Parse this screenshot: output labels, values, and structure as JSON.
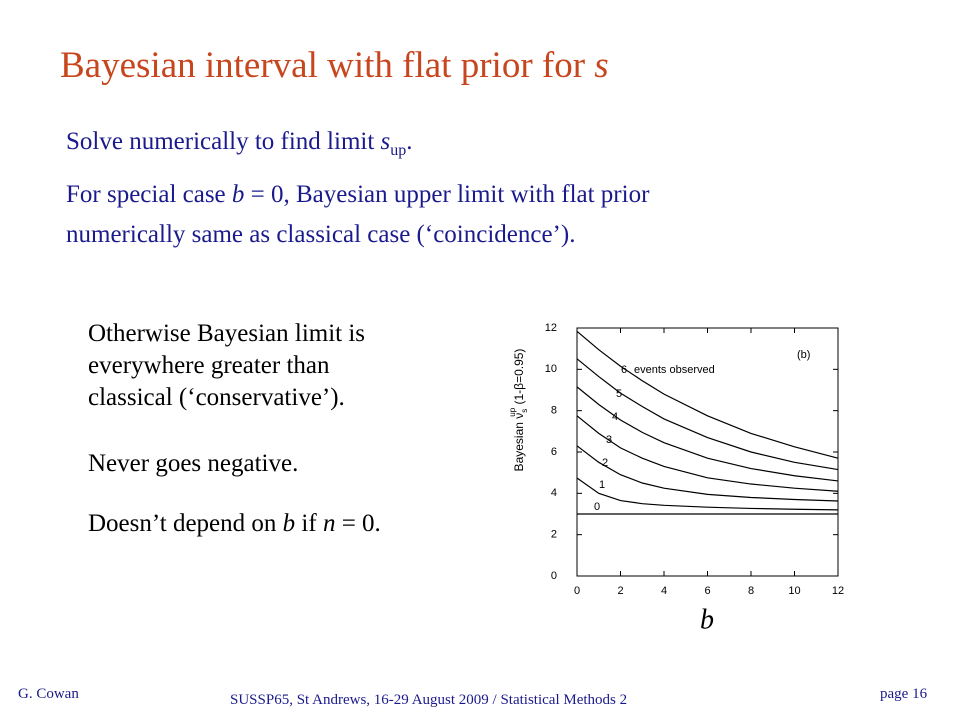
{
  "title": {
    "text": "Bayesian interval with flat prior for ",
    "var": "s"
  },
  "body": {
    "line1": [
      "Solve numerically to find limit ",
      "s",
      "up",
      "."
    ],
    "line2": [
      "For special case ",
      "b",
      " = 0, Bayesian upper limit with flat prior"
    ],
    "line3": "numerically same as classical case (‘coincidence’)."
  },
  "left": {
    "p1": [
      "Otherwise Bayesian limit is",
      "everywhere greater than",
      "classical (‘conservative’)."
    ],
    "p2": "Never goes negative.",
    "p3": [
      "Doesn’t depend on ",
      "b",
      " if ",
      "n",
      " = 0."
    ]
  },
  "footer": {
    "author": "G. Cowan",
    "event": "SUSSP65, St Andrews, 16-29 August 2009 / Statistical Methods 2",
    "page": "page 16"
  },
  "chart_data": {
    "type": "line",
    "x": [
      0,
      1,
      2,
      3,
      4,
      6,
      8,
      10,
      12
    ],
    "series": [
      {
        "name": "0",
        "color": "#000000",
        "values": [
          3.0,
          3.0,
          3.0,
          3.0,
          3.0,
          3.0,
          3.0,
          3.0,
          3.0
        ]
      },
      {
        "name": "1",
        "color": "#000000",
        "values": [
          4.74,
          4.0,
          3.65,
          3.5,
          3.42,
          3.33,
          3.27,
          3.23,
          3.2
        ]
      },
      {
        "name": "2",
        "color": "#000000",
        "values": [
          6.3,
          5.5,
          4.9,
          4.5,
          4.25,
          3.95,
          3.8,
          3.7,
          3.63
        ]
      },
      {
        "name": "3",
        "color": "#000000",
        "values": [
          7.75,
          6.9,
          6.2,
          5.7,
          5.3,
          4.75,
          4.45,
          4.25,
          4.1
        ]
      },
      {
        "name": "4",
        "color": "#000000",
        "values": [
          9.15,
          8.3,
          7.55,
          6.95,
          6.45,
          5.7,
          5.2,
          4.85,
          4.6
        ]
      },
      {
        "name": "5",
        "color": "#000000",
        "values": [
          10.51,
          9.65,
          8.85,
          8.2,
          7.6,
          6.7,
          6.0,
          5.5,
          5.15
        ]
      },
      {
        "name": "6",
        "color": "#000000",
        "values": [
          11.84,
          10.95,
          10.15,
          9.45,
          8.8,
          7.75,
          6.9,
          6.25,
          5.7
        ]
      }
    ],
    "xlim": [
      0,
      12
    ],
    "ylim": [
      0,
      12
    ],
    "xticks": [
      0,
      2,
      4,
      6,
      8,
      10,
      12
    ],
    "yticks": [
      0,
      2,
      4,
      6,
      8,
      10,
      12
    ],
    "xlabel": "b",
    "ylabel": [
      "Bayesian  ν",
      "s",
      "up",
      " (1-β=0.95)"
    ],
    "annotations": [
      "events observed",
      "(b)"
    ]
  }
}
